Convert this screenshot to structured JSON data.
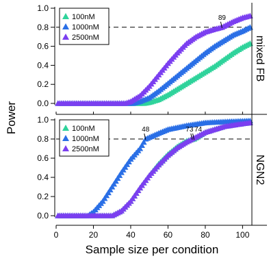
{
  "chart_data": {
    "type": "scatter",
    "xlabel": "Sample size per condition",
    "ylabel": "Power",
    "xlim": [
      0,
      105
    ],
    "ylim": [
      0,
      1.05
    ],
    "xticks": [
      "0",
      "20",
      "40",
      "60",
      "80",
      "100"
    ],
    "yticks": [
      "0.0",
      "0.2",
      "0.4",
      "0.6",
      "0.8",
      "1.0"
    ],
    "threshold": 0.8,
    "colors": {
      "100nM": "#2fd39b",
      "1000nM": "#2a6fe6",
      "2500nM": "#7b3ff0"
    },
    "panels": [
      {
        "label": "mixed FB",
        "legend": [
          "100nM",
          "1000nM",
          "2500nM"
        ],
        "annotations": [
          {
            "x": 89,
            "label": "89"
          }
        ],
        "series": [
          {
            "name": "100nM",
            "color_key": "100nM",
            "x_start": 1,
            "x_end": 104,
            "points": [
              [
                1,
                0
              ],
              [
                47,
                0
              ],
              [
                50,
                0.01
              ],
              [
                55,
                0.04
              ],
              [
                60,
                0.09
              ],
              [
                65,
                0.15
              ],
              [
                70,
                0.21
              ],
              [
                75,
                0.27
              ],
              [
                80,
                0.33
              ],
              [
                85,
                0.39
              ],
              [
                90,
                0.46
              ],
              [
                95,
                0.53
              ],
              [
                100,
                0.59
              ],
              [
                104,
                0.63
              ]
            ]
          },
          {
            "name": "1000nM",
            "color_key": "1000nM",
            "x_start": 1,
            "x_end": 104,
            "points": [
              [
                1,
                0
              ],
              [
                41,
                0
              ],
              [
                45,
                0.02
              ],
              [
                50,
                0.06
              ],
              [
                55,
                0.13
              ],
              [
                60,
                0.21
              ],
              [
                65,
                0.29
              ],
              [
                70,
                0.37
              ],
              [
                75,
                0.45
              ],
              [
                80,
                0.53
              ],
              [
                85,
                0.6
              ],
              [
                90,
                0.66
              ],
              [
                95,
                0.72
              ],
              [
                100,
                0.76
              ],
              [
                104,
                0.8
              ]
            ]
          },
          {
            "name": "2500nM",
            "color_key": "2500nM",
            "x_start": 1,
            "x_end": 104,
            "points": [
              [
                1,
                0
              ],
              [
                37,
                0
              ],
              [
                40,
                0.02
              ],
              [
                45,
                0.08
              ],
              [
                50,
                0.18
              ],
              [
                55,
                0.3
              ],
              [
                60,
                0.42
              ],
              [
                65,
                0.53
              ],
              [
                70,
                0.63
              ],
              [
                75,
                0.7
              ],
              [
                80,
                0.75
              ],
              [
                85,
                0.78
              ],
              [
                89,
                0.8
              ],
              [
                95,
                0.86
              ],
              [
                100,
                0.9
              ],
              [
                104,
                0.92
              ]
            ]
          }
        ]
      },
      {
        "label": "NGN2",
        "legend": [
          "100nM",
          "1000nM",
          "2500nM"
        ],
        "annotations": [
          {
            "x": 48,
            "label": "48"
          },
          {
            "x": 73,
            "label": "73"
          },
          {
            "x": 74,
            "label": "74"
          }
        ],
        "series": [
          {
            "name": "100nM",
            "color_key": "100nM",
            "x_start": 1,
            "x_end": 104,
            "points": [
              [
                1,
                0
              ],
              [
                30,
                0
              ],
              [
                35,
                0.05
              ],
              [
                40,
                0.15
              ],
              [
                45,
                0.29
              ],
              [
                50,
                0.42
              ],
              [
                55,
                0.54
              ],
              [
                60,
                0.64
              ],
              [
                65,
                0.72
              ],
              [
                70,
                0.78
              ],
              [
                74,
                0.8
              ],
              [
                80,
                0.87
              ],
              [
                90,
                0.93
              ],
              [
                100,
                0.96
              ],
              [
                104,
                0.97
              ]
            ]
          },
          {
            "name": "1000nM",
            "color_key": "1000nM",
            "x_start": 1,
            "x_end": 104,
            "points": [
              [
                1,
                0
              ],
              [
                17,
                0
              ],
              [
                20,
                0.04
              ],
              [
                25,
                0.15
              ],
              [
                30,
                0.3
              ],
              [
                35,
                0.45
              ],
              [
                40,
                0.59
              ],
              [
                45,
                0.7
              ],
              [
                48,
                0.8
              ],
              [
                55,
                0.86
              ],
              [
                60,
                0.9
              ],
              [
                70,
                0.94
              ],
              [
                80,
                0.97
              ],
              [
                90,
                0.98
              ],
              [
                104,
                0.99
              ]
            ]
          },
          {
            "name": "2500nM",
            "color_key": "2500nM",
            "x_start": 1,
            "x_end": 104,
            "points": [
              [
                1,
                0
              ],
              [
                30,
                0
              ],
              [
                35,
                0.05
              ],
              [
                40,
                0.15
              ],
              [
                45,
                0.29
              ],
              [
                50,
                0.42
              ],
              [
                55,
                0.53
              ],
              [
                60,
                0.63
              ],
              [
                65,
                0.71
              ],
              [
                70,
                0.77
              ],
              [
                73,
                0.8
              ],
              [
                80,
                0.87
              ],
              [
                90,
                0.93
              ],
              [
                100,
                0.96
              ],
              [
                104,
                0.97
              ]
            ]
          }
        ]
      }
    ]
  }
}
